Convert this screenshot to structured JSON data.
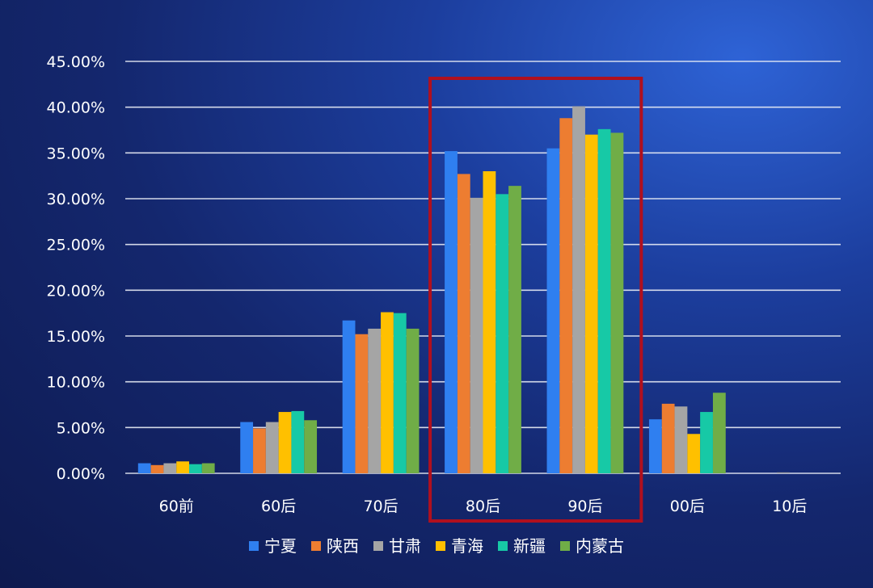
{
  "chart_data": {
    "type": "bar",
    "title": "",
    "xlabel": "",
    "ylabel": "",
    "ylim": [
      0,
      45
    ],
    "ytick_step": 5,
    "ytick_labels": [
      "0.00%",
      "5.00%",
      "10.00%",
      "15.00%",
      "20.00%",
      "25.00%",
      "30.00%",
      "35.00%",
      "40.00%",
      "45.00%"
    ],
    "grid": true,
    "legend_position": "bottom",
    "categories": [
      "60前",
      "60后",
      "70后",
      "80后",
      "90后",
      "00后",
      "10后"
    ],
    "series": [
      {
        "name": "宁夏",
        "color": "#2f7ff0",
        "values": [
          1.1,
          5.6,
          16.7,
          35.2,
          35.5,
          5.9,
          0.0
        ]
      },
      {
        "name": "陕西",
        "color": "#ed7d31",
        "values": [
          0.9,
          4.9,
          15.2,
          32.7,
          38.8,
          7.6,
          0.0
        ]
      },
      {
        "name": "甘肃",
        "color": "#a5a5a5",
        "values": [
          1.1,
          5.6,
          15.8,
          30.1,
          40.1,
          7.3,
          0.1
        ]
      },
      {
        "name": "青海",
        "color": "#ffc000",
        "values": [
          1.3,
          6.7,
          17.6,
          33.0,
          37.0,
          4.3,
          0.0
        ]
      },
      {
        "name": "新疆",
        "color": "#17c9a6",
        "values": [
          1.0,
          6.8,
          17.5,
          30.5,
          37.6,
          6.7,
          0.0
        ]
      },
      {
        "name": "内蒙古",
        "color": "#70ad47",
        "values": [
          1.1,
          5.8,
          15.8,
          31.4,
          37.2,
          8.8,
          0.0
        ]
      }
    ],
    "highlight_categories": [
      "80后",
      "90后"
    ],
    "highlight_color": "#b0101e",
    "background_color": "#14276e",
    "gridline_color": "#e8ecf5",
    "text_color": "#ffffff"
  }
}
